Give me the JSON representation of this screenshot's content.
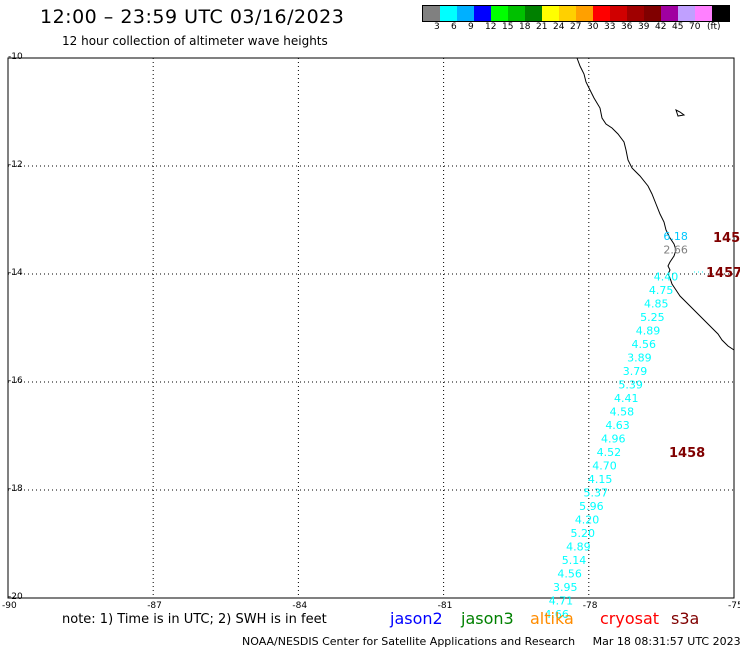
{
  "header": {
    "title": "12:00 – 23:59 UTC 03/16/2023",
    "subtitle": "12 hour collection of altimeter wave heights"
  },
  "color_scale": {
    "unit": "(ft)",
    "colors": [
      "#808080",
      "#00ffff",
      "#00b0ff",
      "#0000ff",
      "#00ff00",
      "#00c000",
      "#008000",
      "#ffff00",
      "#ffd000",
      "#ffa000",
      "#ff0000",
      "#d00000",
      "#a00000",
      "#800000",
      "#a000a0",
      "#c0a0ff",
      "#ff80ff",
      "#000000"
    ],
    "labels": [
      "3",
      "6",
      "9",
      "12",
      "15",
      "18",
      "21",
      "24",
      "27",
      "30",
      "33",
      "36",
      "39",
      "42",
      "45",
      "70"
    ]
  },
  "axes": {
    "lat_labels": [
      "-10",
      "-12",
      "-14",
      "-16",
      "-18",
      "-20"
    ],
    "lon_labels": [
      "-90",
      "-87",
      "-84",
      "-81",
      "-78",
      "-75"
    ]
  },
  "times": [
    "145",
    "1457",
    "1458"
  ],
  "observations": [
    {
      "v": "6.18",
      "lon": -76.5,
      "lat": -13.3,
      "c": "#00c8ff"
    },
    {
      "v": "2.66",
      "lon": -76.5,
      "lat": -13.55,
      "c": "#808080"
    },
    {
      "v": "4.40",
      "lon": -76.7,
      "lat": -14.05,
      "c": "#00ffff"
    },
    {
      "v": "4.75",
      "lon": -76.8,
      "lat": -14.3,
      "c": "#00ffff"
    },
    {
      "v": "4.85",
      "lon": -76.9,
      "lat": -14.55,
      "c": "#00ffff"
    },
    {
      "v": "5.25",
      "lon": -76.98,
      "lat": -14.8,
      "c": "#00ffff"
    },
    {
      "v": "4.89",
      "lon": -77.07,
      "lat": -15.05,
      "c": "#00ffff"
    },
    {
      "v": "4.56",
      "lon": -77.16,
      "lat": -15.3,
      "c": "#00ffff"
    },
    {
      "v": "3.89",
      "lon": -77.25,
      "lat": -15.55,
      "c": "#00ffff"
    },
    {
      "v": "3.79",
      "lon": -77.34,
      "lat": -15.8,
      "c": "#00ffff"
    },
    {
      "v": "5.39",
      "lon": -77.43,
      "lat": -16.05,
      "c": "#00ffff"
    },
    {
      "v": "4.41",
      "lon": -77.52,
      "lat": -16.3,
      "c": "#00ffff"
    },
    {
      "v": "4.58",
      "lon": -77.61,
      "lat": -16.55,
      "c": "#00ffff"
    },
    {
      "v": "4.63",
      "lon": -77.7,
      "lat": -16.8,
      "c": "#00ffff"
    },
    {
      "v": "4.96",
      "lon": -77.79,
      "lat": -17.05,
      "c": "#00ffff"
    },
    {
      "v": "4.52",
      "lon": -77.88,
      "lat": -17.3,
      "c": "#00ffff"
    },
    {
      "v": "4.70",
      "lon": -77.97,
      "lat": -17.55,
      "c": "#00ffff"
    },
    {
      "v": "4.15",
      "lon": -78.06,
      "lat": -17.8,
      "c": "#00ffff"
    },
    {
      "v": "5.37",
      "lon": -78.15,
      "lat": -18.05,
      "c": "#00ffff"
    },
    {
      "v": "5.96",
      "lon": -78.24,
      "lat": -18.3,
      "c": "#00ffff"
    },
    {
      "v": "4.20",
      "lon": -78.33,
      "lat": -18.55,
      "c": "#00ffff"
    },
    {
      "v": "5.20",
      "lon": -78.42,
      "lat": -18.8,
      "c": "#00ffff"
    },
    {
      "v": "4.89",
      "lon": -78.51,
      "lat": -19.05,
      "c": "#00ffff"
    },
    {
      "v": "5.14",
      "lon": -78.6,
      "lat": -19.3,
      "c": "#00ffff"
    },
    {
      "v": "4.56",
      "lon": -78.69,
      "lat": -19.55,
      "c": "#00ffff"
    },
    {
      "v": "3.95",
      "lon": -78.78,
      "lat": -19.8,
      "c": "#00ffff"
    },
    {
      "v": "4.71",
      "lon": -78.87,
      "lat": -20.05,
      "c": "#00ffff"
    },
    {
      "v": "4.66",
      "lon": -78.96,
      "lat": -20.3,
      "c": "#00ffff"
    }
  ],
  "note": "note: 1) Time is in UTC; 2) SWH is in feet",
  "legend": [
    {
      "label": "jason2",
      "color": "#0000ff"
    },
    {
      "label": "jason3",
      "color": "#008000"
    },
    {
      "label": "altika",
      "color": "#ff8c00"
    },
    {
      "label": "cryosat",
      "color": "#ff0000"
    },
    {
      "label": "s3a",
      "color": "#800000"
    }
  ],
  "footer": {
    "credit": "NOAA/NESDIS Center for Satellite Applications and Research",
    "timestamp": "Mar 18 08:31:57 UTC 2023"
  }
}
